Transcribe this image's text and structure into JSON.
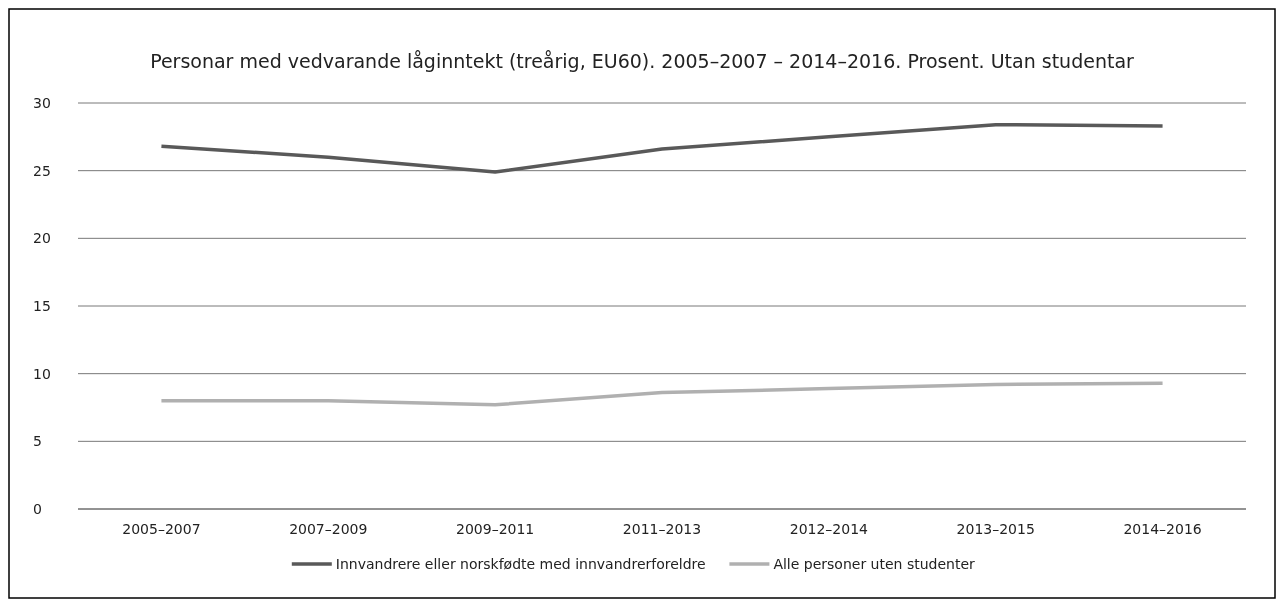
{
  "chart_data": {
    "type": "line",
    "title": "Personar med vedvarande låginntekt (treårig, EU60). 2005–2007 – 2014–2016. Prosent. Utan studentar",
    "categories": [
      "2005–2007",
      "2007–2009",
      "2009–2011",
      "2011–2013",
      "2012–2014",
      "2013–2015",
      "2014–2016"
    ],
    "series": [
      {
        "name": "Innvandrere eller norskfødte med innvandrerforeldre",
        "color": "#595959",
        "values": [
          26.8,
          26.0,
          24.9,
          26.6,
          27.5,
          28.4,
          28.3
        ]
      },
      {
        "name": "Alle personer uten studenter",
        "color": "#b0b0b0",
        "values": [
          8.0,
          8.0,
          7.7,
          8.6,
          8.9,
          9.2,
          9.3
        ]
      }
    ],
    "ylim": [
      0,
      30
    ],
    "yticks": [
      0,
      5,
      10,
      15,
      20,
      25,
      30
    ],
    "grid": "y",
    "legend": "bottom",
    "marker": "none",
    "line_style": "solid"
  }
}
